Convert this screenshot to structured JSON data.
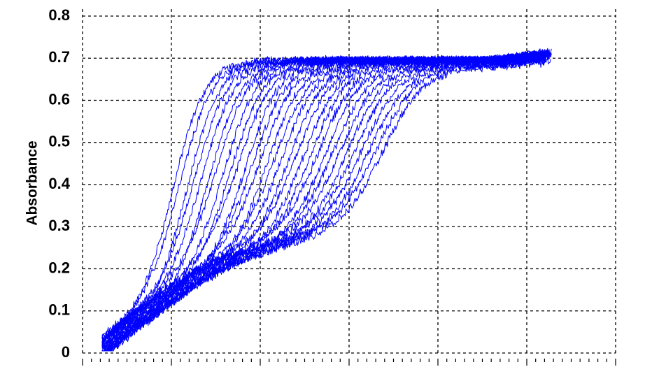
{
  "chart_data": {
    "type": "line",
    "title": "",
    "xlabel": "",
    "ylabel": "Absorbance",
    "ylim": [
      0,
      0.8
    ],
    "yticks": [
      "0",
      "0.1",
      "0.2",
      "0.3",
      "0.4",
      "0.5",
      "0.6",
      "0.7",
      "0.8"
    ],
    "xlim": [
      0,
      6
    ],
    "x_tick_labels_visible": false,
    "grid": true,
    "legend": "none",
    "series_color": "#0000ff",
    "description_of_series": "Family of 30 noisy sigmoidal absorbance traces",
    "series": [
      {
        "x": [
          0.2,
          0.5,
          1.0,
          1.5,
          2.0,
          2.5,
          3.0,
          3.5,
          4.0,
          4.5,
          5.0,
          5.3
        ],
        "values": [
          0.03,
          0.07,
          0.14,
          0.24,
          0.46,
          0.69,
          0.7,
          0.69,
          0.68,
          0.67,
          0.67,
          0.69
        ]
      },
      {
        "x": [
          0.2,
          0.5,
          1.0,
          1.5,
          2.0,
          2.5,
          3.0,
          3.5,
          4.0,
          4.5,
          5.0,
          5.3
        ],
        "values": [
          0.05,
          0.09,
          0.16,
          0.24,
          0.36,
          0.58,
          0.7,
          0.69,
          0.68,
          0.67,
          0.67,
          0.69
        ]
      },
      {
        "x": [
          0.2,
          0.5,
          1.0,
          1.5,
          2.0,
          2.5,
          3.0,
          3.5,
          4.0,
          4.5,
          5.0,
          5.3
        ],
        "values": [
          0.06,
          0.1,
          0.18,
          0.26,
          0.3,
          0.36,
          0.58,
          0.69,
          0.68,
          0.67,
          0.67,
          0.69
        ]
      },
      {
        "x": [
          0.2,
          0.5,
          1.0,
          1.5,
          2.0,
          2.5,
          3.0,
          3.5,
          4.0,
          4.5,
          5.0,
          5.3
        ],
        "values": [
          0.06,
          0.1,
          0.17,
          0.25,
          0.28,
          0.31,
          0.36,
          0.52,
          0.66,
          0.66,
          0.66,
          0.68
        ]
      }
    ]
  }
}
